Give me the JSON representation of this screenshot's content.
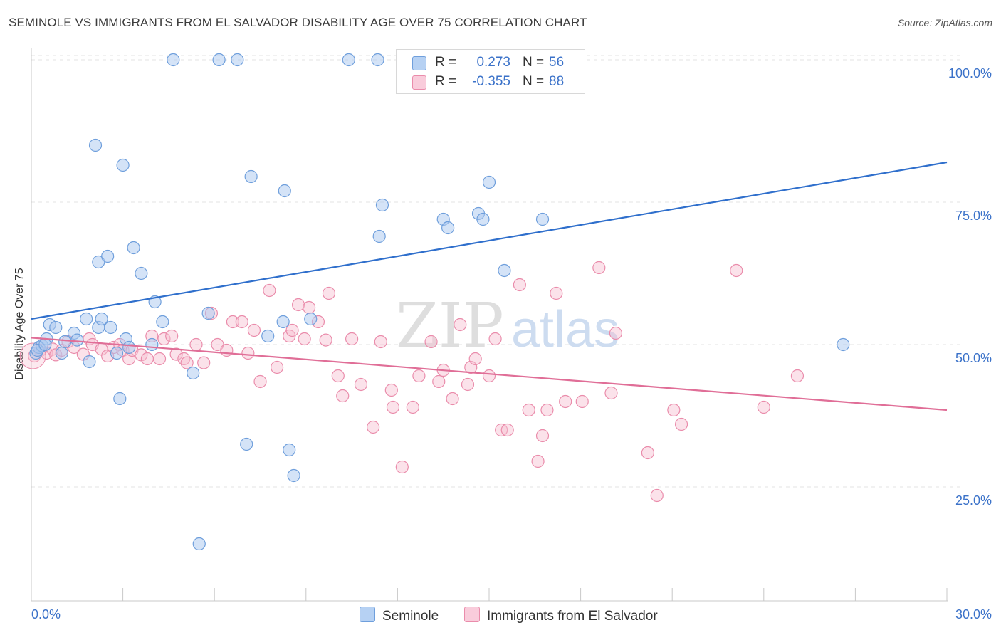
{
  "title": "SEMINOLE VS IMMIGRANTS FROM EL SALVADOR DISABILITY AGE OVER 75 CORRELATION CHART",
  "source": "Source: ZipAtlas.com",
  "watermark": {
    "zip": "ZIP",
    "atlas": "atlas"
  },
  "legend_top": {
    "rows": [
      {
        "r_label": "R =",
        "r_value": "0.273",
        "n_label": "N =",
        "n_value": "56"
      },
      {
        "r_label": "R =",
        "r_value": "-0.355",
        "n_label": "N =",
        "n_value": "88"
      }
    ]
  },
  "legend_bottom": {
    "items": [
      "Seminole",
      "Immigrants from El Salvador"
    ]
  },
  "colors": {
    "blue_fill": "#a9c8f0",
    "blue_stroke": "#6f9fdc",
    "blue_line": "#2f6fcc",
    "pink_fill": "#f7bfd1",
    "pink_stroke": "#ea8cab",
    "pink_line": "#e06e97",
    "tick_text": "#3b72c9",
    "grid": "#e3e3e3"
  },
  "chart_data": {
    "type": "scatter",
    "title": "SEMINOLE VS IMMIGRANTS FROM EL SALVADOR DISABILITY AGE OVER 75 CORRELATION CHART",
    "xlabel": "",
    "ylabel": "Disability Age Over 75",
    "xlim": [
      0,
      30
    ],
    "ylim": [
      5,
      102
    ],
    "x_tick_labels": [
      "0.0%",
      "30.0%"
    ],
    "y_ticks": [
      25,
      50,
      75,
      100
    ],
    "y_tick_labels": [
      "25.0%",
      "50.0%",
      "75.0%",
      "100.0%"
    ],
    "grid": true,
    "legend_position": "top-center",
    "series": [
      {
        "name": "Seminole",
        "r": 0.273,
        "n": 56,
        "trend": {
          "x": [
            0,
            30
          ],
          "y": [
            54.5,
            82
          ]
        },
        "points": [
          [
            0.15,
            48.5
          ],
          [
            0.25,
            49.5
          ],
          [
            0.35,
            49.8
          ],
          [
            0.5,
            51
          ],
          [
            0.6,
            53.5
          ],
          [
            0.8,
            53
          ],
          [
            1.0,
            48.5
          ],
          [
            1.1,
            50.5
          ],
          [
            1.4,
            52
          ],
          [
            1.5,
            50.8
          ],
          [
            1.8,
            54.5
          ],
          [
            1.9,
            47
          ],
          [
            2.1,
            85
          ],
          [
            2.2,
            53
          ],
          [
            2.3,
            54.5
          ],
          [
            2.2,
            64.5
          ],
          [
            2.5,
            65.5
          ],
          [
            2.6,
            53
          ],
          [
            2.8,
            48.5
          ],
          [
            2.9,
            40.5
          ],
          [
            3.0,
            81.5
          ],
          [
            3.1,
            51
          ],
          [
            3.2,
            49.5
          ],
          [
            3.35,
            67
          ],
          [
            3.6,
            62.5
          ],
          [
            3.95,
            50
          ],
          [
            4.05,
            57.5
          ],
          [
            4.3,
            54
          ],
          [
            4.65,
            100
          ],
          [
            5.3,
            45
          ],
          [
            5.5,
            15
          ],
          [
            5.8,
            55.5
          ],
          [
            6.15,
            100
          ],
          [
            6.75,
            100
          ],
          [
            7.05,
            32.5
          ],
          [
            7.2,
            79.5
          ],
          [
            7.75,
            51.5
          ],
          [
            8.25,
            54
          ],
          [
            8.3,
            77
          ],
          [
            8.45,
            31.5
          ],
          [
            8.6,
            27
          ],
          [
            9.15,
            54.5
          ],
          [
            10.4,
            100
          ],
          [
            11.35,
            100
          ],
          [
            11.4,
            69
          ],
          [
            11.5,
            74.5
          ],
          [
            13.5,
            72
          ],
          [
            13.65,
            70.5
          ],
          [
            14.65,
            73
          ],
          [
            14.8,
            72
          ],
          [
            15.0,
            78.5
          ],
          [
            15.5,
            63
          ],
          [
            16.75,
            72
          ],
          [
            26.6,
            50
          ],
          [
            0.2,
            49
          ],
          [
            0.45,
            50
          ]
        ]
      },
      {
        "name": "Immigrants from El Salvador",
        "r": -0.355,
        "n": 88,
        "trend": {
          "x": [
            0,
            30
          ],
          "y": [
            51.2,
            38.5
          ]
        },
        "points": [
          [
            0.1,
            48
          ],
          [
            0.3,
            49
          ],
          [
            0.5,
            48.5
          ],
          [
            0.7,
            49.2
          ],
          [
            0.8,
            48.2
          ],
          [
            1.0,
            49
          ],
          [
            1.2,
            50.5
          ],
          [
            1.4,
            49.5
          ],
          [
            1.7,
            48.3
          ],
          [
            1.9,
            51
          ],
          [
            2.0,
            50
          ],
          [
            2.3,
            49.2
          ],
          [
            2.5,
            48
          ],
          [
            2.7,
            49.5
          ],
          [
            2.9,
            50
          ],
          [
            3.0,
            49
          ],
          [
            3.2,
            47.5
          ],
          [
            3.3,
            49
          ],
          [
            3.6,
            48.2
          ],
          [
            3.8,
            47.5
          ],
          [
            3.95,
            51.5
          ],
          [
            4.2,
            47.5
          ],
          [
            4.35,
            51
          ],
          [
            4.6,
            51.5
          ],
          [
            4.75,
            48.3
          ],
          [
            5.0,
            47.5
          ],
          [
            5.1,
            46.8
          ],
          [
            5.4,
            50
          ],
          [
            5.65,
            46.8
          ],
          [
            5.9,
            55.5
          ],
          [
            6.1,
            50
          ],
          [
            6.4,
            49
          ],
          [
            6.6,
            54
          ],
          [
            6.9,
            54
          ],
          [
            7.1,
            48.5
          ],
          [
            7.3,
            52.5
          ],
          [
            7.5,
            43.5
          ],
          [
            7.8,
            59.5
          ],
          [
            8.05,
            46
          ],
          [
            8.45,
            51.5
          ],
          [
            8.55,
            52.5
          ],
          [
            8.75,
            57
          ],
          [
            8.95,
            51
          ],
          [
            9.1,
            56.5
          ],
          [
            9.4,
            54
          ],
          [
            9.65,
            50.8
          ],
          [
            9.75,
            59
          ],
          [
            10.05,
            44.5
          ],
          [
            10.2,
            41
          ],
          [
            10.5,
            51
          ],
          [
            10.8,
            43
          ],
          [
            11.2,
            35.5
          ],
          [
            11.45,
            50.5
          ],
          [
            11.8,
            42
          ],
          [
            12.15,
            28.5
          ],
          [
            11.85,
            39
          ],
          [
            12.5,
            39
          ],
          [
            12.7,
            44.5
          ],
          [
            13.1,
            50.5
          ],
          [
            13.35,
            43.5
          ],
          [
            13.5,
            45.5
          ],
          [
            13.8,
            40.5
          ],
          [
            14.05,
            53.5
          ],
          [
            14.3,
            43
          ],
          [
            14.4,
            46
          ],
          [
            14.55,
            47.5
          ],
          [
            15.0,
            44.5
          ],
          [
            15.2,
            51
          ],
          [
            15.4,
            35
          ],
          [
            15.6,
            35
          ],
          [
            16.0,
            60.5
          ],
          [
            16.3,
            38.5
          ],
          [
            16.6,
            29.5
          ],
          [
            16.75,
            34
          ],
          [
            16.9,
            38.5
          ],
          [
            17.2,
            59
          ],
          [
            17.5,
            40
          ],
          [
            18.05,
            40
          ],
          [
            18.6,
            63.5
          ],
          [
            19.0,
            41.5
          ],
          [
            19.15,
            52
          ],
          [
            20.2,
            31
          ],
          [
            20.5,
            23.5
          ],
          [
            21.05,
            38.5
          ],
          [
            21.3,
            36
          ],
          [
            23.1,
            63
          ],
          [
            24.0,
            39
          ],
          [
            25.1,
            44.5
          ]
        ]
      }
    ]
  }
}
